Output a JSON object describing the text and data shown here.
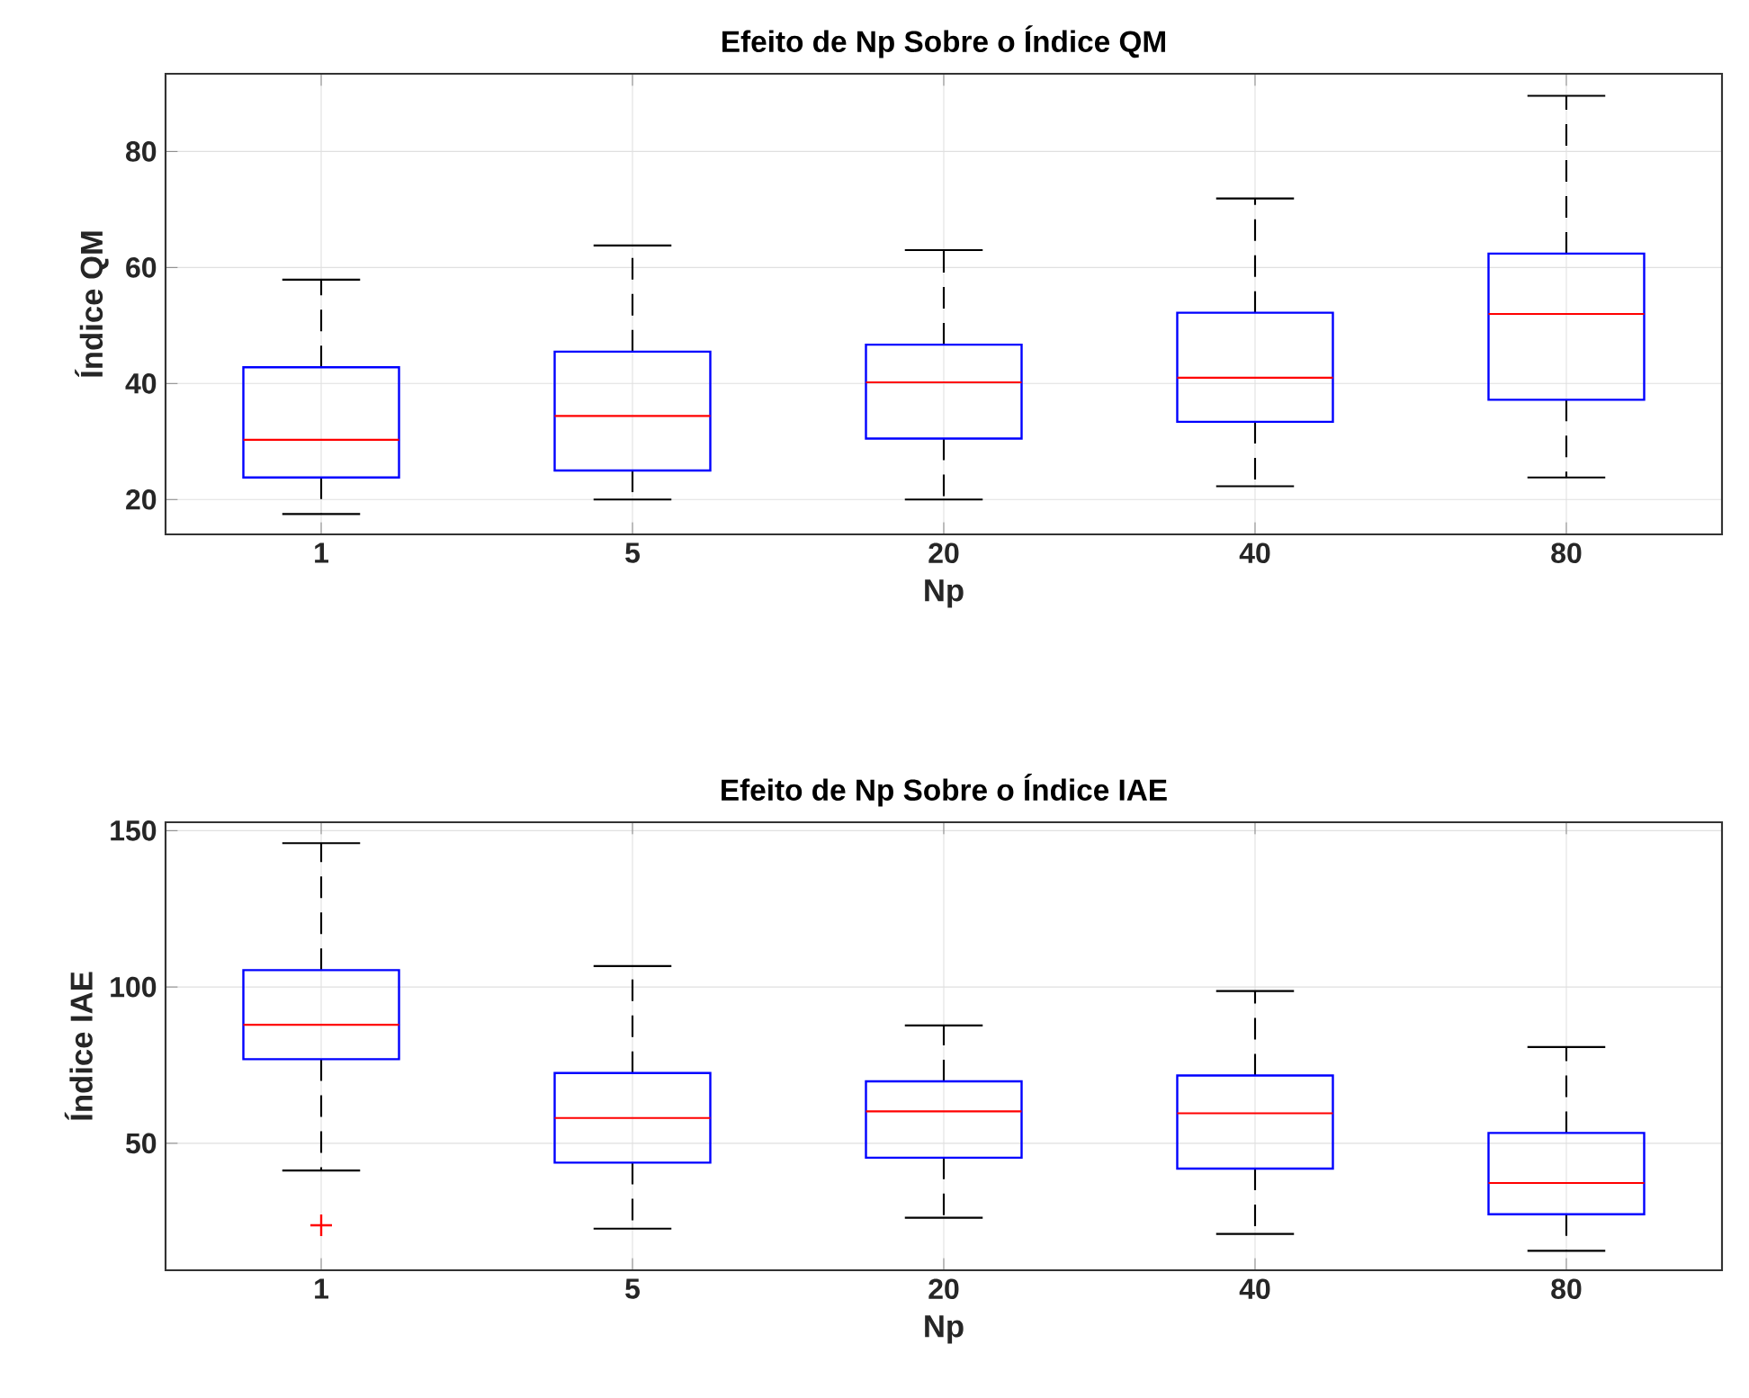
{
  "chart_data": [
    {
      "type": "box",
      "title": "Efeito de Np Sobre o Índice QM",
      "xlabel": "Np",
      "ylabel": "Índice QM",
      "categories": [
        "1",
        "5",
        "20",
        "40",
        "80"
      ],
      "ylim": [
        14.0,
        93.4
      ],
      "yticks": [
        20,
        40,
        60,
        80
      ],
      "grid": true,
      "marker": "cross",
      "series": [
        {
          "color": "#0000ff",
          "boxes": [
            {
              "low": 17.5,
              "q1": 23.8,
              "median": 30.3,
              "q3": 42.8,
              "high": 57.9
            },
            {
              "low": 20.0,
              "q1": 25.0,
              "median": 34.4,
              "q3": 45.5,
              "high": 63.8
            },
            {
              "low": 20.0,
              "q1": 30.5,
              "median": 40.2,
              "q3": 46.7,
              "high": 63.0
            },
            {
              "low": 22.3,
              "q1": 33.4,
              "median": 41.0,
              "q3": 52.2,
              "high": 71.9
            },
            {
              "low": 23.8,
              "q1": 37.2,
              "median": 52.0,
              "q3": 62.4,
              "high": 89.6
            }
          ]
        }
      ]
    },
    {
      "type": "box",
      "title": "Efeito de Np Sobre o Índice IAE",
      "xlabel": "Np",
      "ylabel": "Índice IAE",
      "categories": [
        "1",
        "5",
        "20",
        "40",
        "80"
      ],
      "ylim": [
        9.4,
        152.7
      ],
      "yticks": [
        50,
        100,
        150
      ],
      "grid": true,
      "marker": "cross",
      "series": [
        {
          "color": "#0000ff",
          "boxes": [
            {
              "low": 41.3,
              "q1": 76.9,
              "median": 87.9,
              "q3": 105.4,
              "high": 146.0,
              "outliers": [
                23.8
              ]
            },
            {
              "low": 22.7,
              "q1": 43.8,
              "median": 58.1,
              "q3": 72.5,
              "high": 106.7
            },
            {
              "low": 26.2,
              "q1": 45.4,
              "median": 60.2,
              "q3": 69.8,
              "high": 87.7
            },
            {
              "low": 21.0,
              "q1": 41.9,
              "median": 59.6,
              "q3": 71.7,
              "high": 98.7
            },
            {
              "low": 15.6,
              "q1": 27.3,
              "median": 37.3,
              "q3": 53.3,
              "high": 80.8
            }
          ]
        }
      ]
    }
  ]
}
